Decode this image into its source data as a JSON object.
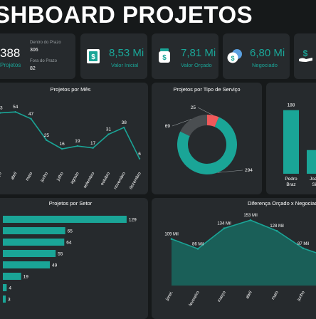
{
  "header": {
    "title": "SHBOARD PROJETOS"
  },
  "kpis": {
    "total": {
      "value": "388",
      "label": "Projetos"
    },
    "prazo": [
      {
        "label": "Dentro do Prazo",
        "value": "306"
      },
      {
        "label": "Fora do Prazo",
        "value": "82"
      }
    ],
    "cards": [
      {
        "value": "8,53 Mi",
        "label": "Valor Inicial",
        "icon": "money-icon"
      },
      {
        "value": "7,81 Mi",
        "label": "Valor Orçado",
        "icon": "money-jar-icon"
      },
      {
        "value": "6,80 Mi",
        "label": "Negociado",
        "icon": "coins-icon"
      },
      {
        "value": "",
        "label": "",
        "icon": "money-hand-icon"
      }
    ]
  },
  "colors": {
    "accent": "#1aa597",
    "highlight": "#f0595a",
    "dark_slice": "#4a4e51",
    "card": "#262a2d",
    "bg": "#16191a"
  },
  "chart_data": [
    {
      "type": "line",
      "title": "Projetos por Mês",
      "categories": [
        "março",
        "abril",
        "maio",
        "junho",
        "julho",
        "agosto",
        "setembro",
        "outubro",
        "novembro",
        "dezembro"
      ],
      "values": [
        53,
        54,
        47,
        25,
        16,
        19,
        17,
        31,
        38,
        6
      ],
      "ylim": [
        0,
        60
      ]
    },
    {
      "type": "pie",
      "title": "Projetos por Tipo de Serviço",
      "values": [
        294,
        69,
        25
      ],
      "colors": [
        "#1aa597",
        "#4a4e51",
        "#f0595a"
      ]
    },
    {
      "type": "bar",
      "title": "",
      "categories": [
        "Pedro Braz",
        "Joao Sil"
      ],
      "values": [
        188,
        70
      ],
      "value_labels": [
        "188",
        ""
      ],
      "ylim": [
        0,
        200
      ]
    },
    {
      "type": "bar",
      "orientation": "horizontal",
      "title": "Projetos por Setor",
      "values": [
        129,
        65,
        64,
        55,
        49,
        19,
        4,
        3
      ],
      "xlim": [
        0,
        135
      ]
    },
    {
      "type": "area",
      "title": "Diferença Orçado x Negociad",
      "categories": [
        "janei.",
        "fevereiro",
        "março",
        "abril",
        "maio",
        "junho",
        "julho",
        "agosto"
      ],
      "values": [
        109,
        86,
        134,
        153,
        128,
        87,
        66,
        74
      ],
      "value_labels": [
        "109 Mil",
        "86 Mil",
        "134 Mil",
        "153 Mil",
        "128 Mil",
        "87 Mil",
        "66 Mil",
        ""
      ],
      "ylim": [
        0,
        165
      ]
    }
  ]
}
